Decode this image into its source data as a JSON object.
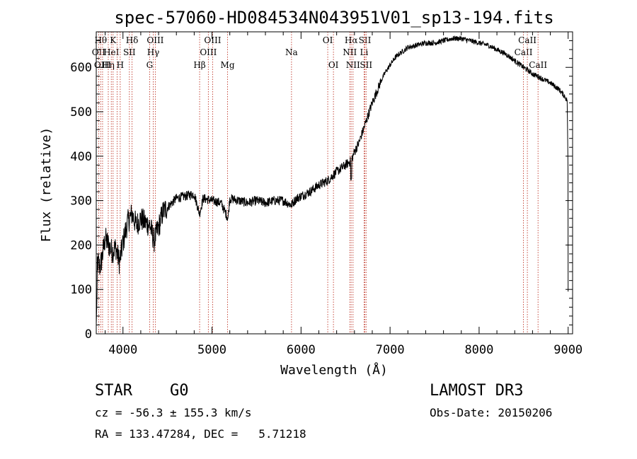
{
  "chart_data": {
    "type": "line",
    "title": "spec-57060-HD084534N043951V01_sp13-194.fits",
    "xlabel": "Wavelength (Å)",
    "ylabel": "Flux (relative)",
    "xlim": [
      3700,
      9050
    ],
    "ylim": [
      0,
      680
    ],
    "xticks": [
      4000,
      5000,
      6000,
      7000,
      8000,
      9000
    ],
    "yticks": [
      0,
      100,
      200,
      300,
      400,
      500,
      600
    ],
    "series": [
      {
        "name": "spectrum",
        "x": [
          3700,
          3740,
          3760,
          3800,
          3840,
          3880,
          3920,
          3960,
          4000,
          4050,
          4100,
          4150,
          4200,
          4250,
          4300,
          4350,
          4400,
          4450,
          4500,
          4600,
          4700,
          4800,
          4860,
          4900,
          5000,
          5100,
          5180,
          5200,
          5300,
          5400,
          5500,
          5600,
          5700,
          5800,
          5890,
          5950,
          6000,
          6100,
          6200,
          6300,
          6400,
          6500,
          6563,
          6600,
          6650,
          6700,
          6750,
          6800,
          6850,
          6900,
          6950,
          7000,
          7050,
          7100,
          7150,
          7200,
          7300,
          7400,
          7500,
          7600,
          7700,
          7800,
          7900,
          8000,
          8100,
          8200,
          8300,
          8400,
          8500,
          8540,
          8600,
          8660,
          8700,
          8800,
          8900,
          8960,
          8990,
          9000
        ],
        "y": [
          170,
          150,
          165,
          215,
          200,
          185,
          195,
          160,
          205,
          250,
          270,
          245,
          260,
          250,
          245,
          210,
          240,
          275,
          285,
          305,
          310,
          315,
          270,
          305,
          300,
          295,
          260,
          305,
          300,
          295,
          300,
          295,
          300,
          300,
          290,
          305,
          310,
          320,
          335,
          345,
          365,
          380,
          390,
          410,
          430,
          460,
          490,
          520,
          545,
          570,
          590,
          605,
          620,
          630,
          637,
          645,
          650,
          655,
          655,
          660,
          665,
          665,
          660,
          655,
          650,
          640,
          630,
          615,
          600,
          595,
          585,
          580,
          575,
          565,
          550,
          535,
          525,
          330
        ]
      }
    ],
    "lines": [
      {
        "wl": 3727,
        "label": "OII",
        "row": 2
      },
      {
        "wl": 3750,
        "label": "Hθ",
        "row": 1
      },
      {
        "wl": 3771,
        "label": "OIII",
        "row": 3
      },
      {
        "wl": 3835,
        "label": "Hη",
        "row": 3
      },
      {
        "wl": 3869,
        "label": "HeI",
        "row": 2
      },
      {
        "wl": 3889,
        "label": "K",
        "row": 1
      },
      {
        "wl": 3934,
        "label": "",
        "row": 0
      },
      {
        "wl": 3969,
        "label": "H",
        "row": 3
      },
      {
        "wl": 4072,
        "label": "SII",
        "row": 2
      },
      {
        "wl": 4102,
        "label": "Hδ",
        "row": 1
      },
      {
        "wl": 4300,
        "label": "G",
        "row": 3
      },
      {
        "wl": 4340,
        "label": "Hγ",
        "row": 2
      },
      {
        "wl": 4363,
        "label": "OIII",
        "row": 1
      },
      {
        "wl": 4861,
        "label": "Hβ",
        "row": 3
      },
      {
        "wl": 4959,
        "label": "OIII",
        "row": 2
      },
      {
        "wl": 5007,
        "label": "OIII",
        "row": 1
      },
      {
        "wl": 5175,
        "label": "Mg",
        "row": 3
      },
      {
        "wl": 5893,
        "label": "Na",
        "row": 2
      },
      {
        "wl": 6300,
        "label": "OI",
        "row": 1
      },
      {
        "wl": 6364,
        "label": "OI",
        "row": 3
      },
      {
        "wl": 6548,
        "label": "NII",
        "row": 2
      },
      {
        "wl": 6563,
        "label": "Hα",
        "row": 1
      },
      {
        "wl": 6584,
        "label": "NII",
        "row": 3
      },
      {
        "wl": 6708,
        "label": "Li",
        "row": 2
      },
      {
        "wl": 6717,
        "label": "SII",
        "row": 1
      },
      {
        "wl": 6731,
        "label": "SII",
        "row": 3
      },
      {
        "wl": 8498,
        "label": "CaII",
        "row": 2
      },
      {
        "wl": 8542,
        "label": "CaII",
        "row": 1
      },
      {
        "wl": 8662,
        "label": "CaII",
        "row": 3
      }
    ]
  },
  "info": {
    "object_class": "STAR",
    "subclass": "G0",
    "survey": "LAMOST DR3",
    "cz": "cz = -56.3 ± 155.3 km/s",
    "obs_date": "Obs-Date: 20150206",
    "coords": "RA = 133.47284, DEC =   5.71218"
  }
}
